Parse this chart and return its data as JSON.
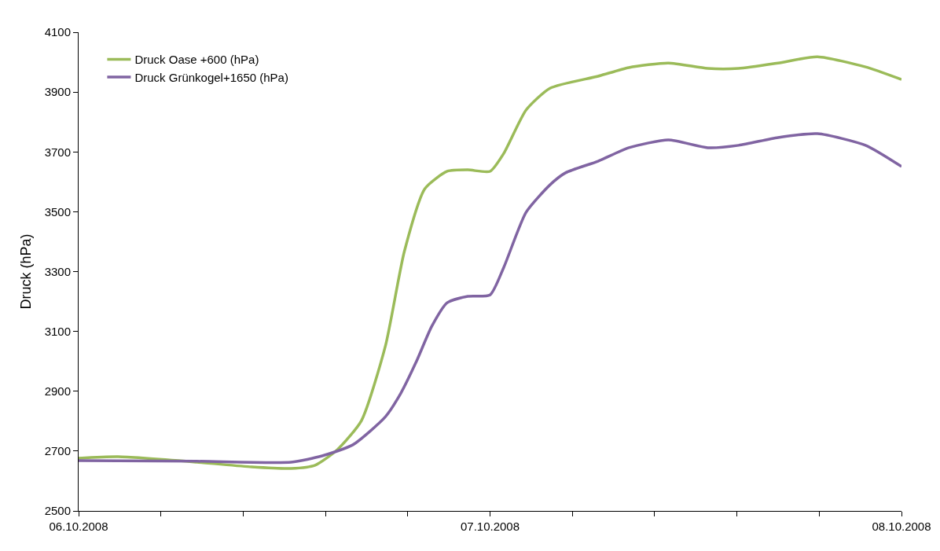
{
  "chart_data": {
    "type": "line",
    "ylabel": "Druck (hPa)",
    "legend": "top left",
    "grid": false,
    "marker": "none",
    "line_style": "solid",
    "ylim": [
      2500,
      4100
    ],
    "yticks": [
      2500,
      2700,
      2900,
      3100,
      3300,
      3500,
      3700,
      3900,
      4100
    ],
    "xlim": [
      "2008-10-06",
      "2008-10-08"
    ],
    "xticks": [
      {
        "value": "2008-10-06",
        "label": "06.10.2008"
      },
      {
        "value": "2008-10-06T04:48",
        "label": null
      },
      {
        "value": "2008-10-06T09:36",
        "label": null
      },
      {
        "value": "2008-10-06T14:24",
        "label": null
      },
      {
        "value": "2008-10-06T19:12",
        "label": null
      },
      {
        "value": "2008-10-07",
        "label": "07.10.2008"
      },
      {
        "value": "2008-10-07T04:48",
        "label": null
      },
      {
        "value": "2008-10-07T09:36",
        "label": null
      },
      {
        "value": "2008-10-07T14:24",
        "label": null
      },
      {
        "value": "2008-10-07T19:12",
        "label": null
      },
      {
        "value": "2008-10-08",
        "label": "08.10.2008"
      }
    ],
    "series": [
      {
        "name": "Druck Oase +600 (hPa)",
        "color": "#9bbb59",
        "x": [
          "2008-10-06T00:00",
          "2008-10-06T02:18",
          "2008-10-06T06:54",
          "2008-10-06T10:06",
          "2008-10-06T12:24",
          "2008-10-06T13:48",
          "2008-10-06T15:06",
          "2008-10-06T16:30",
          "2008-10-06T17:54",
          "2008-10-06T19:00",
          "2008-10-06T20:12",
          "2008-10-06T21:30",
          "2008-10-06T22:42",
          "2008-10-07T00:00",
          "2008-10-07T00:48",
          "2008-10-07T02:06",
          "2008-10-07T03:30",
          "2008-10-07T06:18",
          "2008-10-07T08:06",
          "2008-10-07T10:24",
          "2008-10-07T12:42",
          "2008-10-07T14:30",
          "2008-10-07T16:48",
          "2008-10-07T19:06",
          "2008-10-07T21:54",
          "2008-10-08T00:00"
        ],
        "values": [
          2676,
          2681,
          2663,
          2647,
          2642,
          2653,
          2705,
          2802,
          3052,
          3367,
          3577,
          3635,
          3640,
          3635,
          3695,
          3840,
          3913,
          3953,
          3982,
          3997,
          3979,
          3979,
          3997,
          4018,
          3984,
          3942
        ]
      },
      {
        "name": "Druck Grünkogel+1650 (hPa)",
        "color": "#8064a2",
        "x": [
          "2008-10-06T00:00",
          "2008-10-06T06:54",
          "2008-10-06T12:24",
          "2008-10-06T14:12",
          "2008-10-06T16:00",
          "2008-10-06T17:54",
          "2008-10-06T18:48",
          "2008-10-06T19:42",
          "2008-10-06T20:36",
          "2008-10-06T21:30",
          "2008-10-06T22:42",
          "2008-10-07T00:00",
          "2008-10-07T00:48",
          "2008-10-07T02:06",
          "2008-10-07T03:30",
          "2008-10-07T04:24",
          "2008-10-07T06:18",
          "2008-10-07T08:06",
          "2008-10-07T10:24",
          "2008-10-07T12:42",
          "2008-10-07T14:30",
          "2008-10-07T16:48",
          "2008-10-07T19:06",
          "2008-10-07T21:54",
          "2008-10-08T00:00"
        ],
        "values": [
          2668,
          2666,
          2663,
          2684,
          2721,
          2815,
          2894,
          2999,
          3117,
          3196,
          3217,
          3222,
          3314,
          3498,
          3590,
          3630,
          3669,
          3714,
          3740,
          3714,
          3722,
          3748,
          3761,
          3722,
          3651
        ]
      }
    ]
  }
}
